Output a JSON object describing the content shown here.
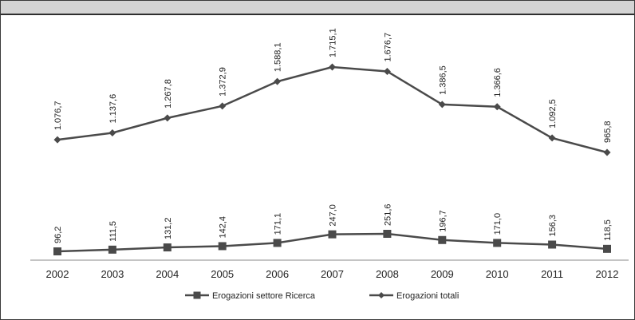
{
  "chart_data": {
    "type": "line",
    "title": "",
    "xlabel": "",
    "ylabel": "",
    "categories": [
      "2002",
      "2003",
      "2004",
      "2005",
      "2006",
      "2007",
      "2008",
      "2009",
      "2010",
      "2011",
      "2012"
    ],
    "series": [
      {
        "name": "Erogazioni settore Ricerca",
        "marker": "square",
        "color": "#4a4a4a",
        "values": [
          96.2,
          111.5,
          131.2,
          142.4,
          171.1,
          247.0,
          251.6,
          196.7,
          171.0,
          156.3,
          118.5
        ],
        "labels": [
          "96,2",
          "111,5",
          "131,2",
          "142,4",
          "171,1",
          "247,0",
          "251,6",
          "196,7",
          "171,0",
          "156,3",
          "118,5"
        ]
      },
      {
        "name": "Erogazioni totali",
        "marker": "diamond",
        "color": "#4a4a4a",
        "values": [
          1076.7,
          1137.6,
          1267.8,
          1372.9,
          1588.1,
          1715.1,
          1676.7,
          1386.5,
          1366.6,
          1092.5,
          965.8
        ],
        "labels": [
          "1.076,7",
          "1.137,6",
          "1.267,8",
          "1.372,9",
          "1.588,1",
          "1.715,1",
          "1.676,7",
          "1.386,5",
          "1.366,6",
          "1.092,5",
          "965,8"
        ]
      }
    ],
    "grid": false,
    "legend_position": "bottom"
  }
}
